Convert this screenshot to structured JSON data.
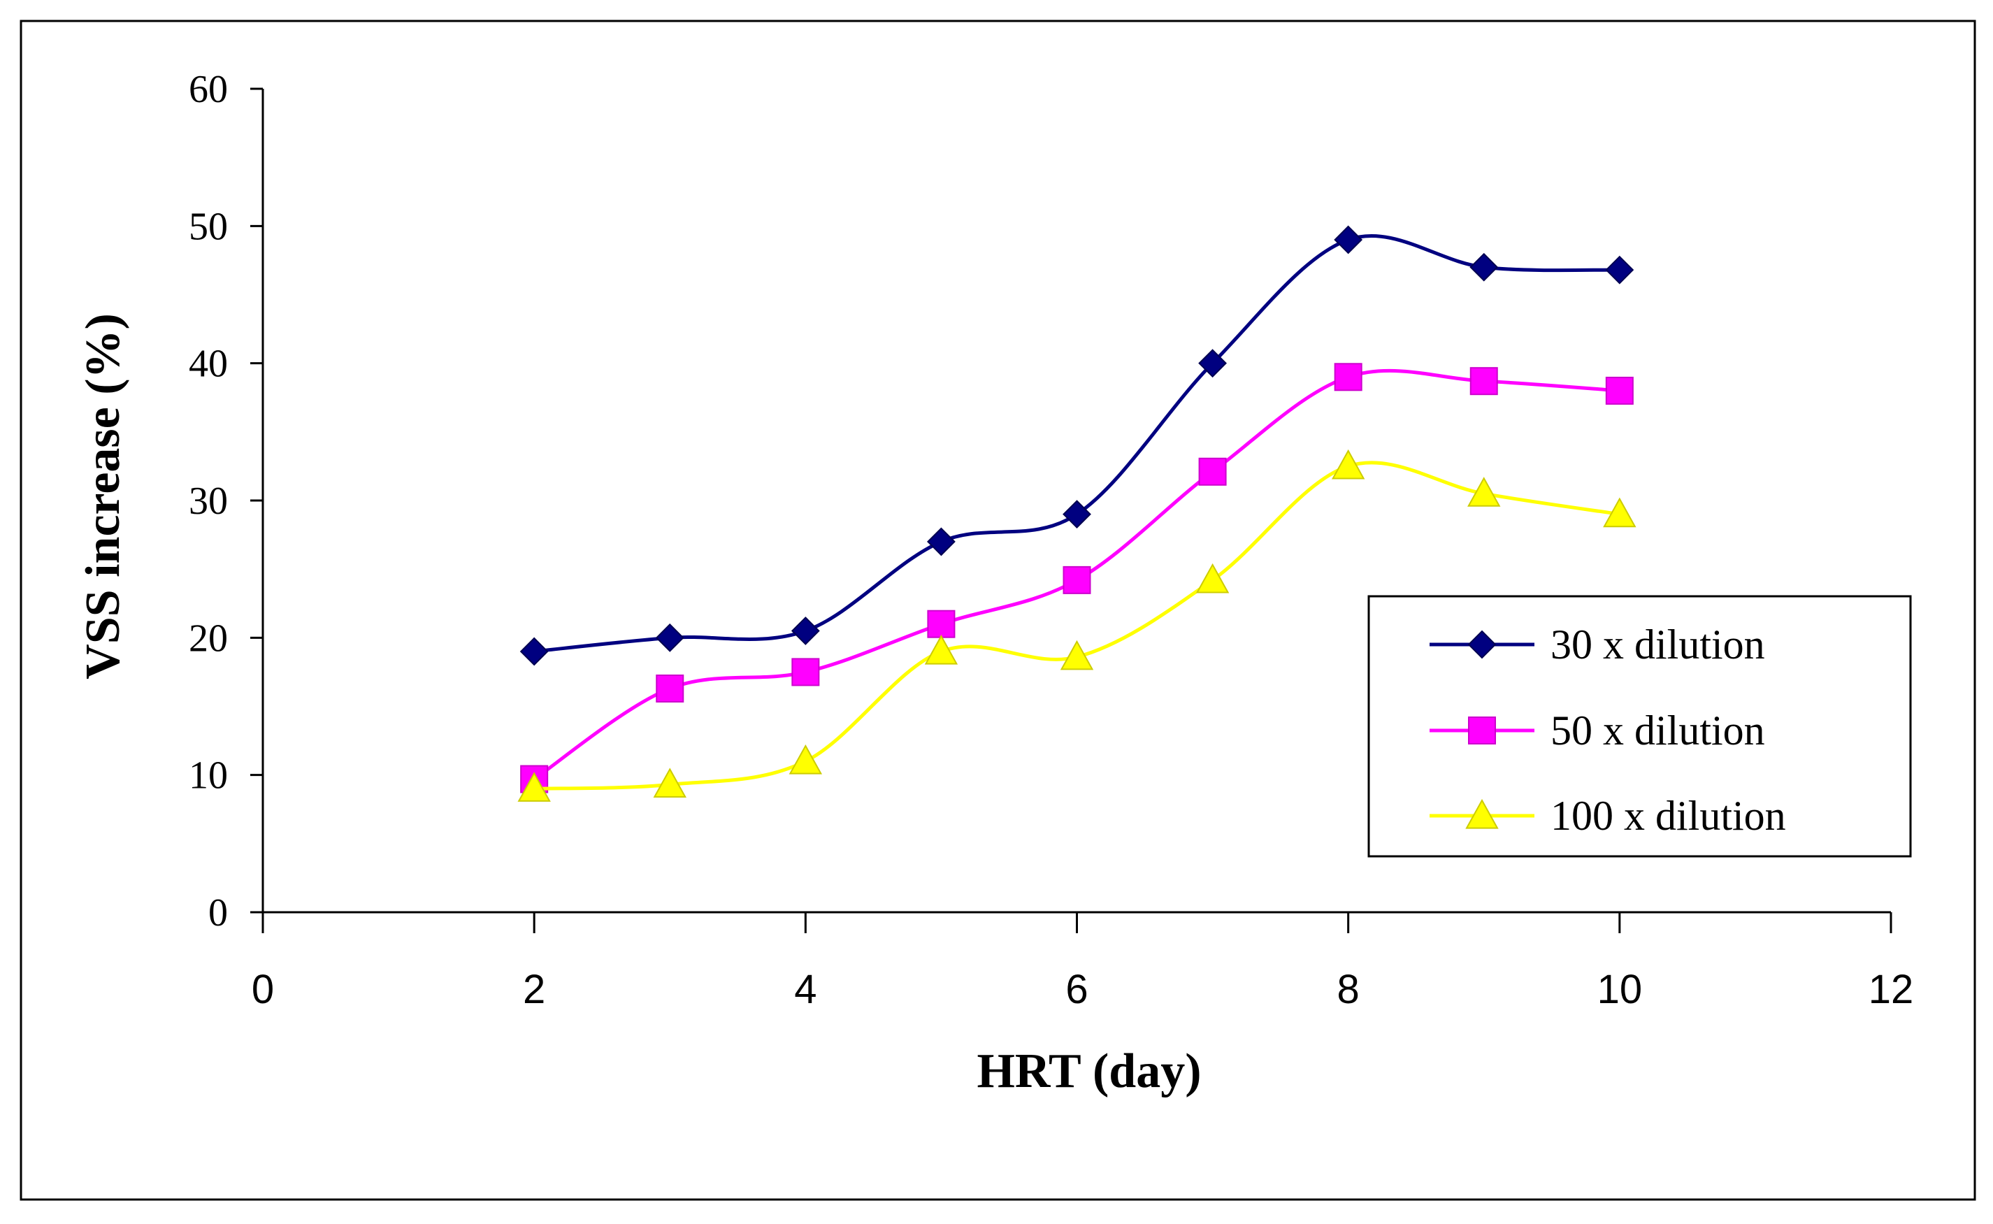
{
  "chart_data": {
    "type": "line",
    "title": "",
    "xlabel": "HRT (day)",
    "ylabel": "VSS increase  (%)",
    "xlim": [
      0,
      12
    ],
    "ylim": [
      0,
      60
    ],
    "xticks": [
      "0",
      "2",
      "4",
      "6",
      "8",
      "10",
      "12"
    ],
    "yticks": [
      "0",
      "10",
      "20",
      "30",
      "40",
      "50",
      "60"
    ],
    "grid": false,
    "legend_position": "right-middle",
    "x": [
      2,
      3,
      4,
      5,
      6,
      7,
      8,
      9,
      10
    ],
    "series": [
      {
        "name": "30 x dilution",
        "color": "#000080",
        "marker": "diamond",
        "values": [
          19,
          20,
          20.5,
          27,
          29,
          40,
          49,
          47,
          46.8
        ]
      },
      {
        "name": "50 x dilution",
        "color": "#FF00FF",
        "marker": "square",
        "values": [
          9.7,
          16.3,
          17.5,
          21,
          24.2,
          32.1,
          39,
          38.7,
          38
        ]
      },
      {
        "name": "100 x dilution",
        "color": "#FFFF00",
        "marker": "triangle",
        "values": [
          9,
          9.3,
          11,
          19,
          18.6,
          24.2,
          32.5,
          30.5,
          29
        ]
      }
    ]
  }
}
